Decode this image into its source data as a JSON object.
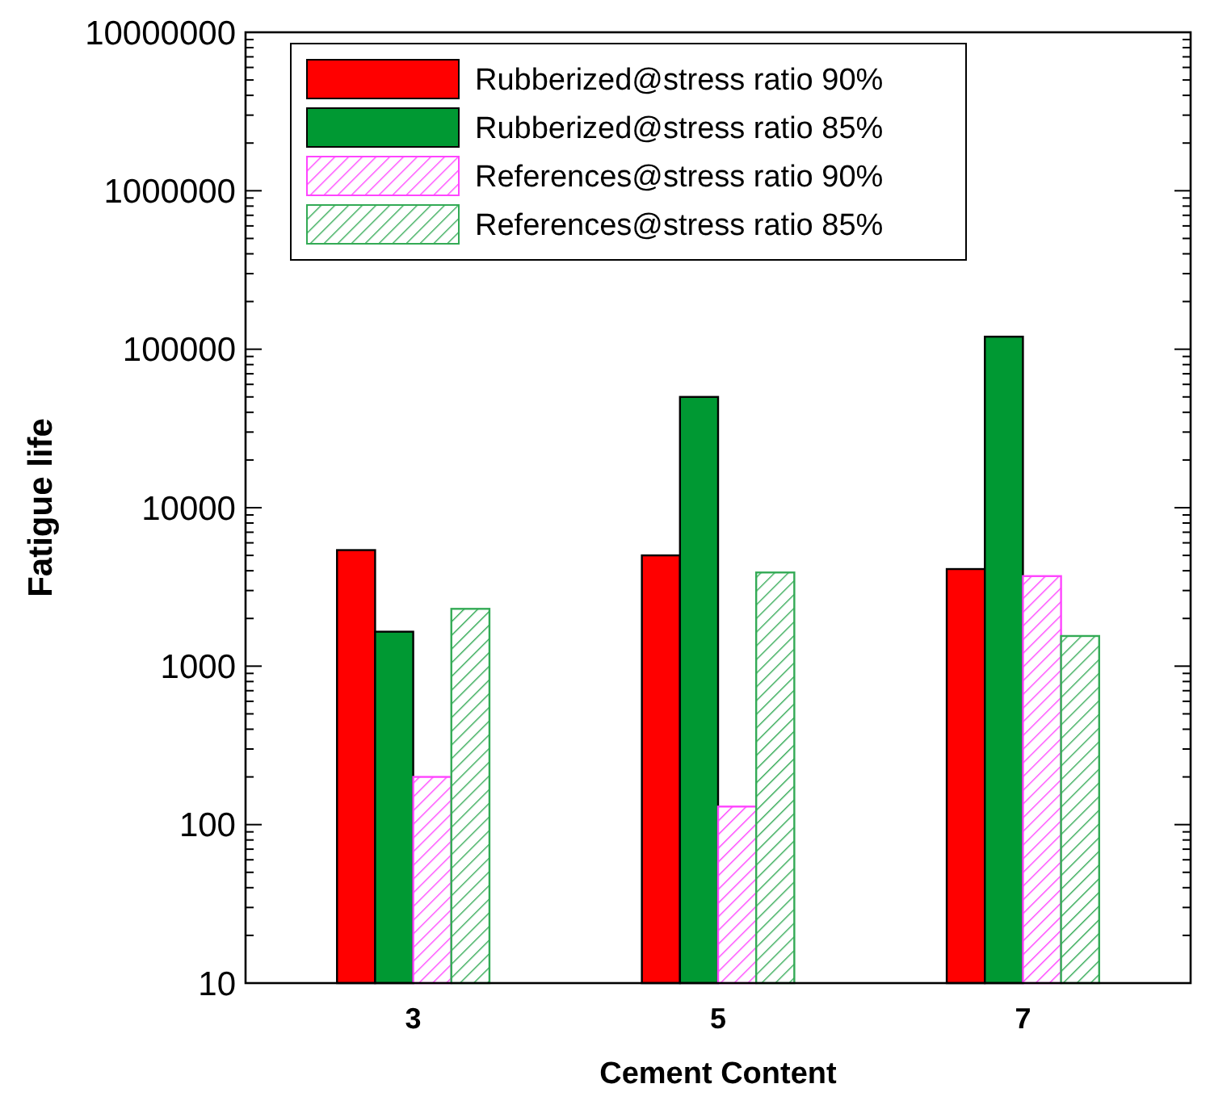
{
  "chart_data": {
    "type": "bar",
    "xlabel": "Cement Content",
    "ylabel": "Fatigue life",
    "categories": [
      "3",
      "5",
      "7"
    ],
    "series": [
      {
        "name": "Rubberized@stress ratio 90%",
        "color": "#ff0000",
        "values": [
          5400,
          5000,
          4100
        ]
      },
      {
        "name": "Rubberized@stress ratio 85%",
        "color": "#009933",
        "values": [
          1650,
          50000,
          120000
        ]
      },
      {
        "name": "References@stress ratio 90%",
        "color": "#ff44ff",
        "values": [
          200,
          130,
          3700
        ]
      },
      {
        "name": "References@stress ratio 85%",
        "color": "#33aa55",
        "values": [
          2300,
          3900,
          1550
        ]
      }
    ],
    "log": true,
    "ylim": [
      10,
      10000000
    ],
    "yticks": [
      10,
      {
        "value": 20,
        "label": null
      },
      {
        "value": 30,
        "label": null
      },
      {
        "value": 40,
        "label": null
      },
      {
        "value": 50,
        "label": null
      },
      {
        "value": 60,
        "label": null
      },
      {
        "value": 70,
        "label": null
      },
      {
        "value": 80,
        "label": null
      },
      {
        "value": 90,
        "label": null
      },
      100,
      {
        "value": 200,
        "label": null
      },
      {
        "value": 300,
        "label": null
      },
      {
        "value": 400,
        "label": null
      },
      {
        "value": 500,
        "label": null
      },
      {
        "value": 600,
        "label": null
      },
      {
        "value": 700,
        "label": null
      },
      {
        "value": 800,
        "label": null
      },
      {
        "value": 900,
        "label": null
      },
      1000,
      {
        "value": 2000,
        "label": null
      },
      {
        "value": 3000,
        "label": null
      },
      {
        "value": 4000,
        "label": null
      },
      {
        "value": 5000,
        "label": null
      },
      {
        "value": 6000,
        "label": null
      },
      {
        "value": 7000,
        "label": null
      },
      {
        "value": 8000,
        "label": null
      },
      {
        "value": 9000,
        "label": null
      },
      10000,
      {
        "value": 20000,
        "label": null
      },
      {
        "value": 30000,
        "label": null
      },
      {
        "value": 40000,
        "label": null
      },
      {
        "value": 50000,
        "label": null
      },
      {
        "value": 60000,
        "label": null
      },
      {
        "value": 70000,
        "label": null
      },
      {
        "value": 80000,
        "label": null
      },
      {
        "value": 90000,
        "label": null
      },
      100000,
      {
        "value": 200000,
        "label": null
      },
      {
        "value": 300000,
        "label": null
      },
      {
        "value": 400000,
        "label": null
      },
      {
        "value": 500000,
        "label": null
      },
      {
        "value": 600000,
        "label": null
      },
      {
        "value": 700000,
        "label": null
      },
      {
        "value": 800000,
        "label": null
      },
      {
        "value": 900000,
        "label": null
      },
      1000000,
      {
        "value": 2000000,
        "label": null
      },
      {
        "value": 3000000,
        "label": null
      },
      {
        "value": 4000000,
        "label": null
      },
      {
        "value": 5000000,
        "label": null
      },
      {
        "value": 6000000,
        "label": null
      },
      {
        "value": 7000000,
        "label": null
      },
      {
        "value": 8000000,
        "label": null
      },
      {
        "value": 9000000,
        "label": null
      },
      10000000
    ],
    "grid": false,
    "legend": "top left"
  }
}
